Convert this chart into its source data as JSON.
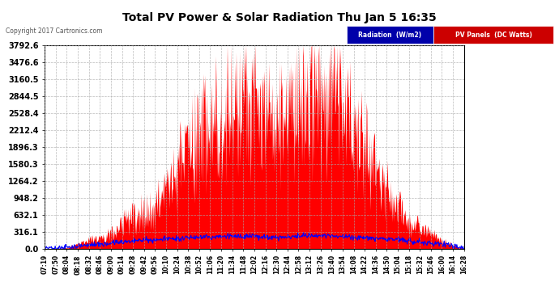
{
  "title": "Total PV Power & Solar Radiation Thu Jan 5 16:35",
  "copyright": "Copyright 2017 Cartronics.com",
  "legend_labels": [
    "Radiation  (W/m2)",
    "PV Panels  (DC Watts)"
  ],
  "legend_colors": [
    "#0000cc",
    "#ff0000"
  ],
  "yticks": [
    0.0,
    316.1,
    632.1,
    948.2,
    1264.2,
    1580.3,
    1896.3,
    2212.4,
    2528.4,
    2844.5,
    3160.5,
    3476.6,
    3792.6
  ],
  "ymax": 3792.6,
  "ymin": 0.0,
  "background_color": "#ffffff",
  "plot_bg_color": "#ffffff",
  "grid_color": "#aaaaaa",
  "fill_color_red": "#ff0000",
  "line_color_blue": "#0000ff",
  "title_color": "#000000",
  "tick_label_color": "#000000",
  "axis_color": "#000000",
  "legend_bg_blue": "#0000aa",
  "legend_bg_red": "#cc0000",
  "x_labels": [
    "07:19",
    "07:50",
    "08:04",
    "08:18",
    "08:32",
    "08:46",
    "09:00",
    "09:14",
    "09:28",
    "09:42",
    "09:56",
    "10:10",
    "10:24",
    "10:38",
    "10:52",
    "11:06",
    "11:20",
    "11:34",
    "11:48",
    "12:02",
    "12:16",
    "12:30",
    "12:44",
    "12:58",
    "13:12",
    "13:26",
    "13:40",
    "13:54",
    "14:08",
    "14:22",
    "14:36",
    "14:50",
    "15:04",
    "15:18",
    "15:32",
    "15:46",
    "16:00",
    "16:14",
    "16:28"
  ],
  "pv_vals": [
    0,
    0,
    30,
    100,
    200,
    280,
    350,
    600,
    750,
    900,
    1050,
    1300,
    1900,
    2400,
    2600,
    2900,
    3200,
    3600,
    3792,
    3500,
    3100,
    2800,
    3400,
    3700,
    3792,
    3792,
    3600,
    3200,
    2800,
    2400,
    1800,
    1400,
    1000,
    700,
    500,
    350,
    200,
    80,
    0
  ],
  "rad_vals": [
    0,
    5,
    20,
    40,
    60,
    80,
    100,
    120,
    140,
    160,
    170,
    180,
    190,
    200,
    210,
    215,
    220,
    225,
    230,
    220,
    215,
    210,
    220,
    230,
    235,
    240,
    230,
    220,
    210,
    200,
    190,
    180,
    160,
    140,
    120,
    100,
    80,
    50,
    10
  ]
}
